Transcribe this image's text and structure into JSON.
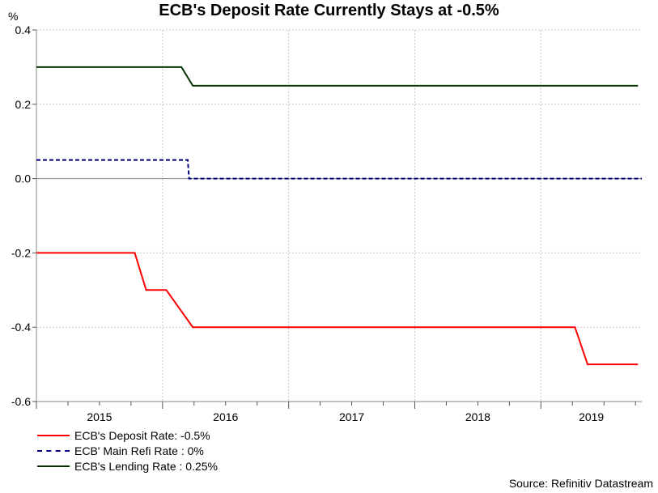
{
  "title": "ECB's Deposit Rate Currently Stays at -0.5%",
  "unit": "%",
  "source": "Source: Refinitiv Datastream",
  "chart_data": {
    "type": "line",
    "title": "ECB's Deposit Rate Currently Stays at -0.5%",
    "ylabel": "%",
    "ylim": [
      -0.6,
      0.4
    ],
    "yticks": [
      "0.4",
      "0.2",
      "0.0",
      "-0.2",
      "-0.4",
      "-0.6"
    ],
    "xlim": [
      2015.0,
      2019.8
    ],
    "xtick_labels": [
      "2015",
      "2016",
      "2017",
      "2018",
      "2019"
    ],
    "grid": true,
    "legend_position": "bottom-left",
    "series": [
      {
        "name": "ECB's Deposit Rate: -0.5%",
        "color": "#ff0000",
        "style": "solid",
        "points": [
          [
            2015.0,
            -0.2
          ],
          [
            2015.78,
            -0.2
          ],
          [
            2015.87,
            -0.3
          ],
          [
            2016.03,
            -0.3
          ],
          [
            2016.24,
            -0.4
          ],
          [
            2019.27,
            -0.4
          ],
          [
            2019.37,
            -0.5
          ],
          [
            2019.77,
            -0.5
          ]
        ]
      },
      {
        "name": "ECB' Main Refi Rate : 0%",
        "color": "#00007f",
        "style": "dashed",
        "points": [
          [
            2015.0,
            0.05
          ],
          [
            2016.2,
            0.05
          ],
          [
            2016.21,
            0.0
          ],
          [
            2019.8,
            0.0
          ]
        ]
      },
      {
        "name": "ECB's Lending Rate : 0.25%",
        "color": "#003300",
        "style": "solid",
        "points": [
          [
            2015.0,
            0.3
          ],
          [
            2016.15,
            0.3
          ],
          [
            2016.24,
            0.25
          ],
          [
            2019.77,
            0.25
          ]
        ]
      }
    ]
  }
}
